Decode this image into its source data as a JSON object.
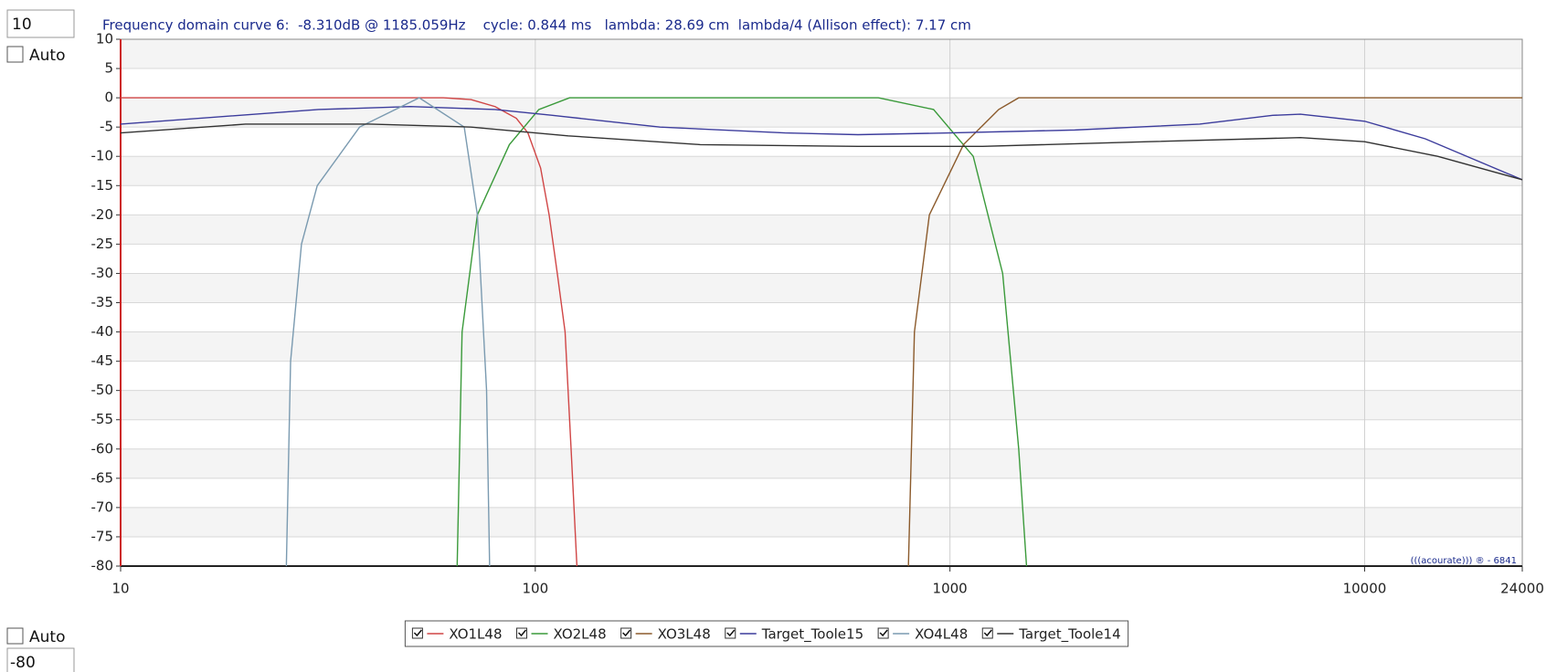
{
  "ui": {
    "top_auto_label": "Auto",
    "bottom_auto_label": "Auto",
    "watermark": "(((acourate))) ® - 6841"
  },
  "chart_data": {
    "type": "line",
    "title": "Frequency domain curve 6:  -8.310dB @ 1185.059Hz    cycle: 0.844 ms   lambda: 28.69 cm  lambda/4 (Allison effect): 7.17 cm",
    "log_x": true,
    "grid": true,
    "xlim": [
      10,
      24000
    ],
    "xticks": [
      10,
      100,
      1000,
      10000,
      24000
    ],
    "ylim": [
      -80,
      10
    ],
    "yticks": [
      10,
      5,
      0,
      -5,
      -10,
      -15,
      -20,
      -25,
      -30,
      -35,
      -40,
      -45,
      -50,
      -55,
      -60,
      -65,
      -70,
      -75,
      -80
    ],
    "series": [
      {
        "name": "XO1L48",
        "color": "#d04545",
        "x": [
          10,
          60,
          70,
          80,
          90,
          96,
          103,
          108,
          113,
          118,
          122,
          126
        ],
        "values": [
          0,
          0,
          -0.3,
          -1.5,
          -3.5,
          -6,
          -12,
          -20,
          -30,
          -40,
          -60,
          -80
        ]
      },
      {
        "name": "XO2L48",
        "color": "#3a9a3a",
        "x": [
          64.8,
          66.6,
          72.5,
          86.6,
          102,
          121,
          672,
          913,
          1138,
          1340,
          1465,
          1530
        ],
        "values": [
          -80,
          -40,
          -20,
          -8,
          -2,
          0,
          0,
          -2,
          -10,
          -30,
          -60,
          -80
        ]
      },
      {
        "name": "XO3L48",
        "color": "#8b5a2b",
        "x": [
          794,
          821,
          892,
          1078,
          1311,
          1465,
          24000
        ],
        "values": [
          -80,
          -40,
          -20,
          -8,
          -2,
          0,
          0
        ]
      },
      {
        "name": "Target_Toole15",
        "color": "#3c3c9c",
        "x": [
          10,
          30,
          50,
          80,
          110,
          200,
          400,
          600,
          1000,
          2000,
          4000,
          6000,
          7000,
          10000,
          14000,
          24000
        ],
        "values": [
          -4.5,
          -2,
          -1.5,
          -2,
          -3,
          -5,
          -6,
          -6.3,
          -6,
          -5.5,
          -4.5,
          -3,
          -2.8,
          -4,
          -7,
          -14
        ]
      },
      {
        "name": "XO4L48",
        "color": "#7a9ab0",
        "x": [
          25.1,
          25.7,
          27.3,
          29.8,
          37.7,
          52.5,
          67.4,
          72.5,
          76.3,
          77.6
        ],
        "values": [
          -80,
          -45,
          -25,
          -15,
          -5,
          0,
          -5,
          -20,
          -50,
          -80
        ]
      },
      {
        "name": "Target_Toole14",
        "color": "#333333",
        "x": [
          10,
          20,
          40,
          70,
          120,
          250,
          600,
          1200,
          3000,
          7000,
          10000,
          15000,
          24000
        ],
        "values": [
          -6,
          -4.5,
          -4.5,
          -5,
          -6.5,
          -8,
          -8.3,
          -8.3,
          -7.5,
          -6.8,
          -7.5,
          -10,
          -14
        ]
      }
    ]
  }
}
